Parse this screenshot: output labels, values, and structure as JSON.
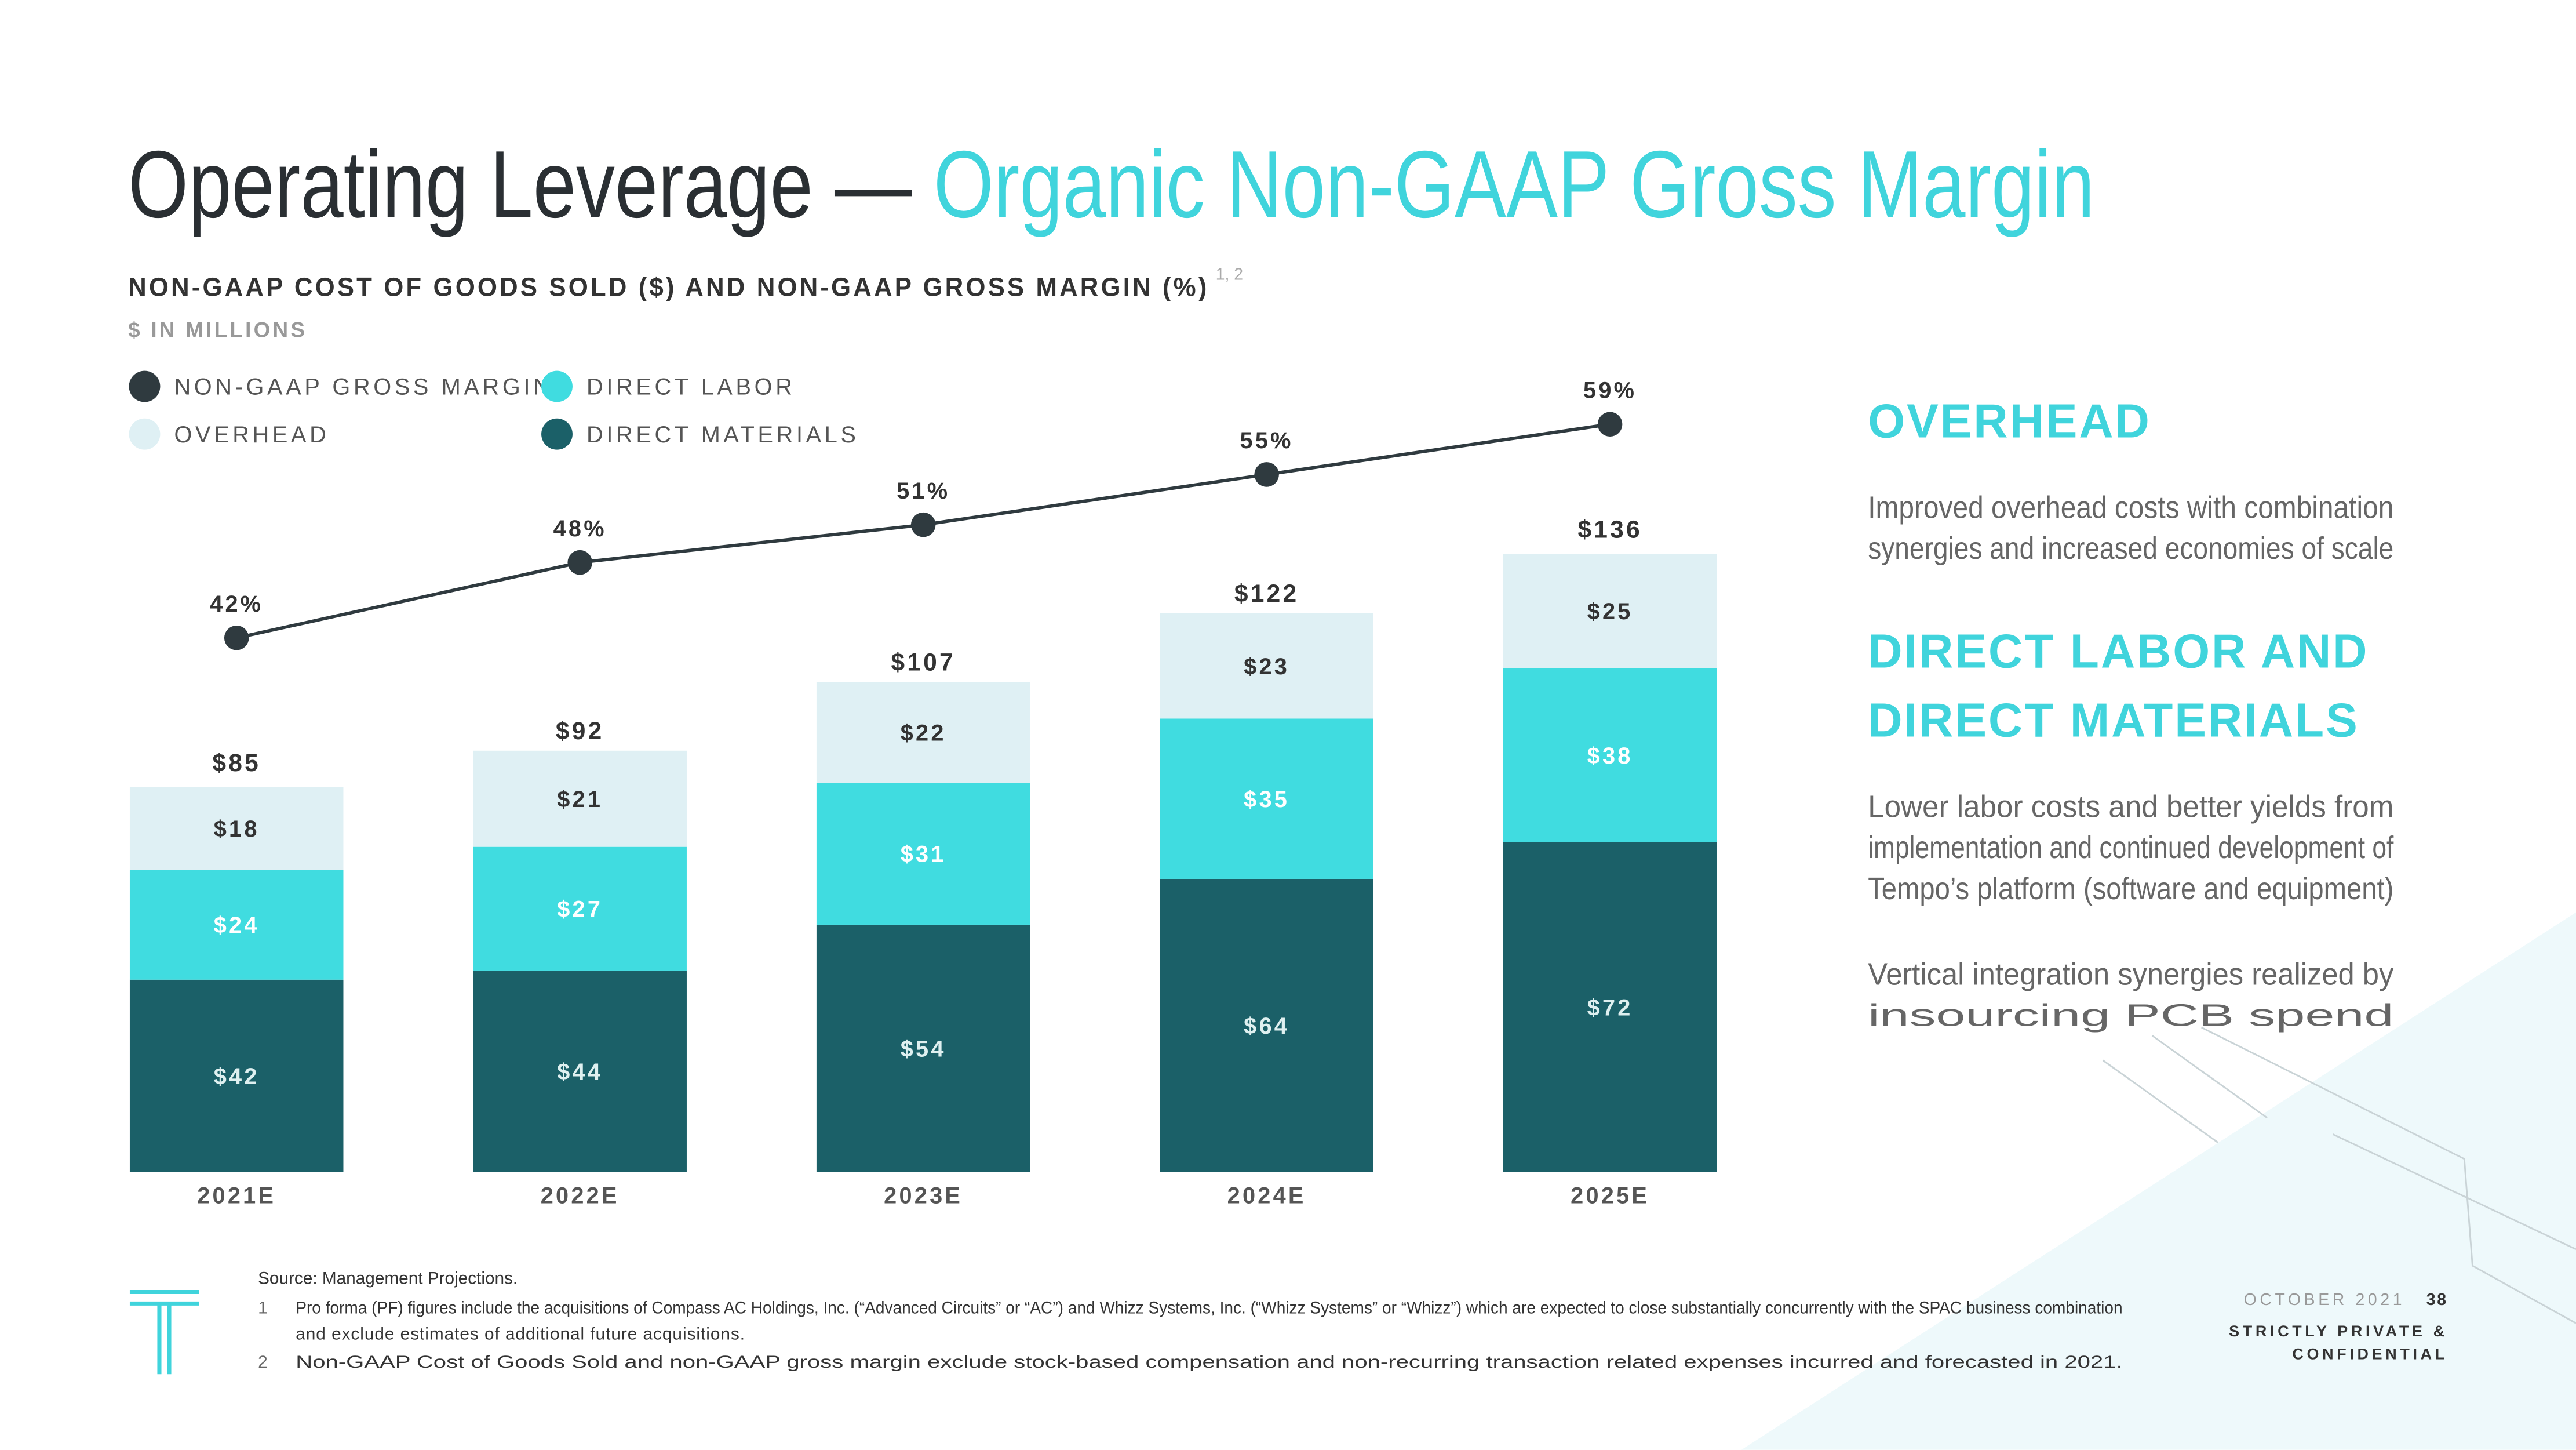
{
  "chart_data": {
    "type": "stacked_bar_line",
    "title": "Operating Leverage — ",
    "title_highlight": "Organic Non-GAAP Gross Margin",
    "subtitle": "NON-GAAP COST OF GOODS SOLD ($) AND NON-GAAP GROSS MARGIN (%)",
    "subtitle_superscript": "1, 2",
    "unit": "$ IN MILLIONS",
    "categories": [
      "2021E",
      "2022E",
      "2023E",
      "2024E",
      "2025E"
    ],
    "series": [
      {
        "name": "DIRECT MATERIALS",
        "color": "#1b6068",
        "values": [
          42,
          44,
          54,
          64,
          72
        ],
        "value_labels": [
          "$42",
          "$44",
          "$54",
          "$64",
          "$72"
        ]
      },
      {
        "name": "DIRECT LABOR",
        "color": "#40dce0",
        "values": [
          24,
          27,
          31,
          35,
          38
        ],
        "value_labels": [
          "$24",
          "$27",
          "$31",
          "$35",
          "$38"
        ]
      },
      {
        "name": "OVERHEAD",
        "color": "#dff0f4",
        "values": [
          18,
          21,
          22,
          23,
          25
        ],
        "value_labels": [
          "$18",
          "$21",
          "$22",
          "$23",
          "$25"
        ]
      },
      {
        "name": "NON-GAAP GROSS MARGIN",
        "type": "line",
        "color": "#2f3a3f",
        "values": [
          42,
          48,
          51,
          55,
          59
        ],
        "value_labels": [
          "42%",
          "48%",
          "51%",
          "55%",
          "59%"
        ]
      }
    ],
    "totals": [
      85,
      92,
      107,
      122,
      136
    ],
    "total_labels": [
      "$85",
      "$92",
      "$107",
      "$122",
      "$136"
    ]
  },
  "side_panel": [
    {
      "heading_lines": [
        "OVERHEAD"
      ],
      "paragraphs": [
        [
          "Improved overhead costs with combination",
          "synergies and increased economies of scale"
        ]
      ]
    },
    {
      "heading_lines": [
        "DIRECT LABOR AND",
        "DIRECT MATERIALS"
      ],
      "paragraphs": [
        [
          "Lower labor costs and better yields from",
          "implementation and continued development of",
          "Tempo’s platform (software and equipment)"
        ],
        [
          "Vertical integration synergies realized by",
          "insourcing PCB spend"
        ]
      ]
    }
  ],
  "footnotes": {
    "source": "Source: Management Projections.",
    "notes": [
      {
        "number": "1",
        "lines": [
          "Pro forma (PF) figures include the acquisitions of Compass AC Holdings, Inc. (“Advanced Circuits” or “AC”) and Whizz Systems, Inc. (“Whizz Systems” or “Whizz”) which are expected to close substantially concurrently with the SPAC business combination",
          "and exclude estimates of additional future acquisitions."
        ]
      },
      {
        "number": "2",
        "lines": [
          "Non-GAAP Cost of Goods Sold and non-GAAP gross margin exclude stock-based compensation and non-recurring transaction related expenses incurred and forecasted in 2021."
        ]
      }
    ]
  },
  "footer": {
    "date": "OCTOBER 2021",
    "page": "38",
    "confidentiality_lines": [
      "STRICTLY PRIVATE &",
      "CONFIDENTIAL"
    ]
  }
}
